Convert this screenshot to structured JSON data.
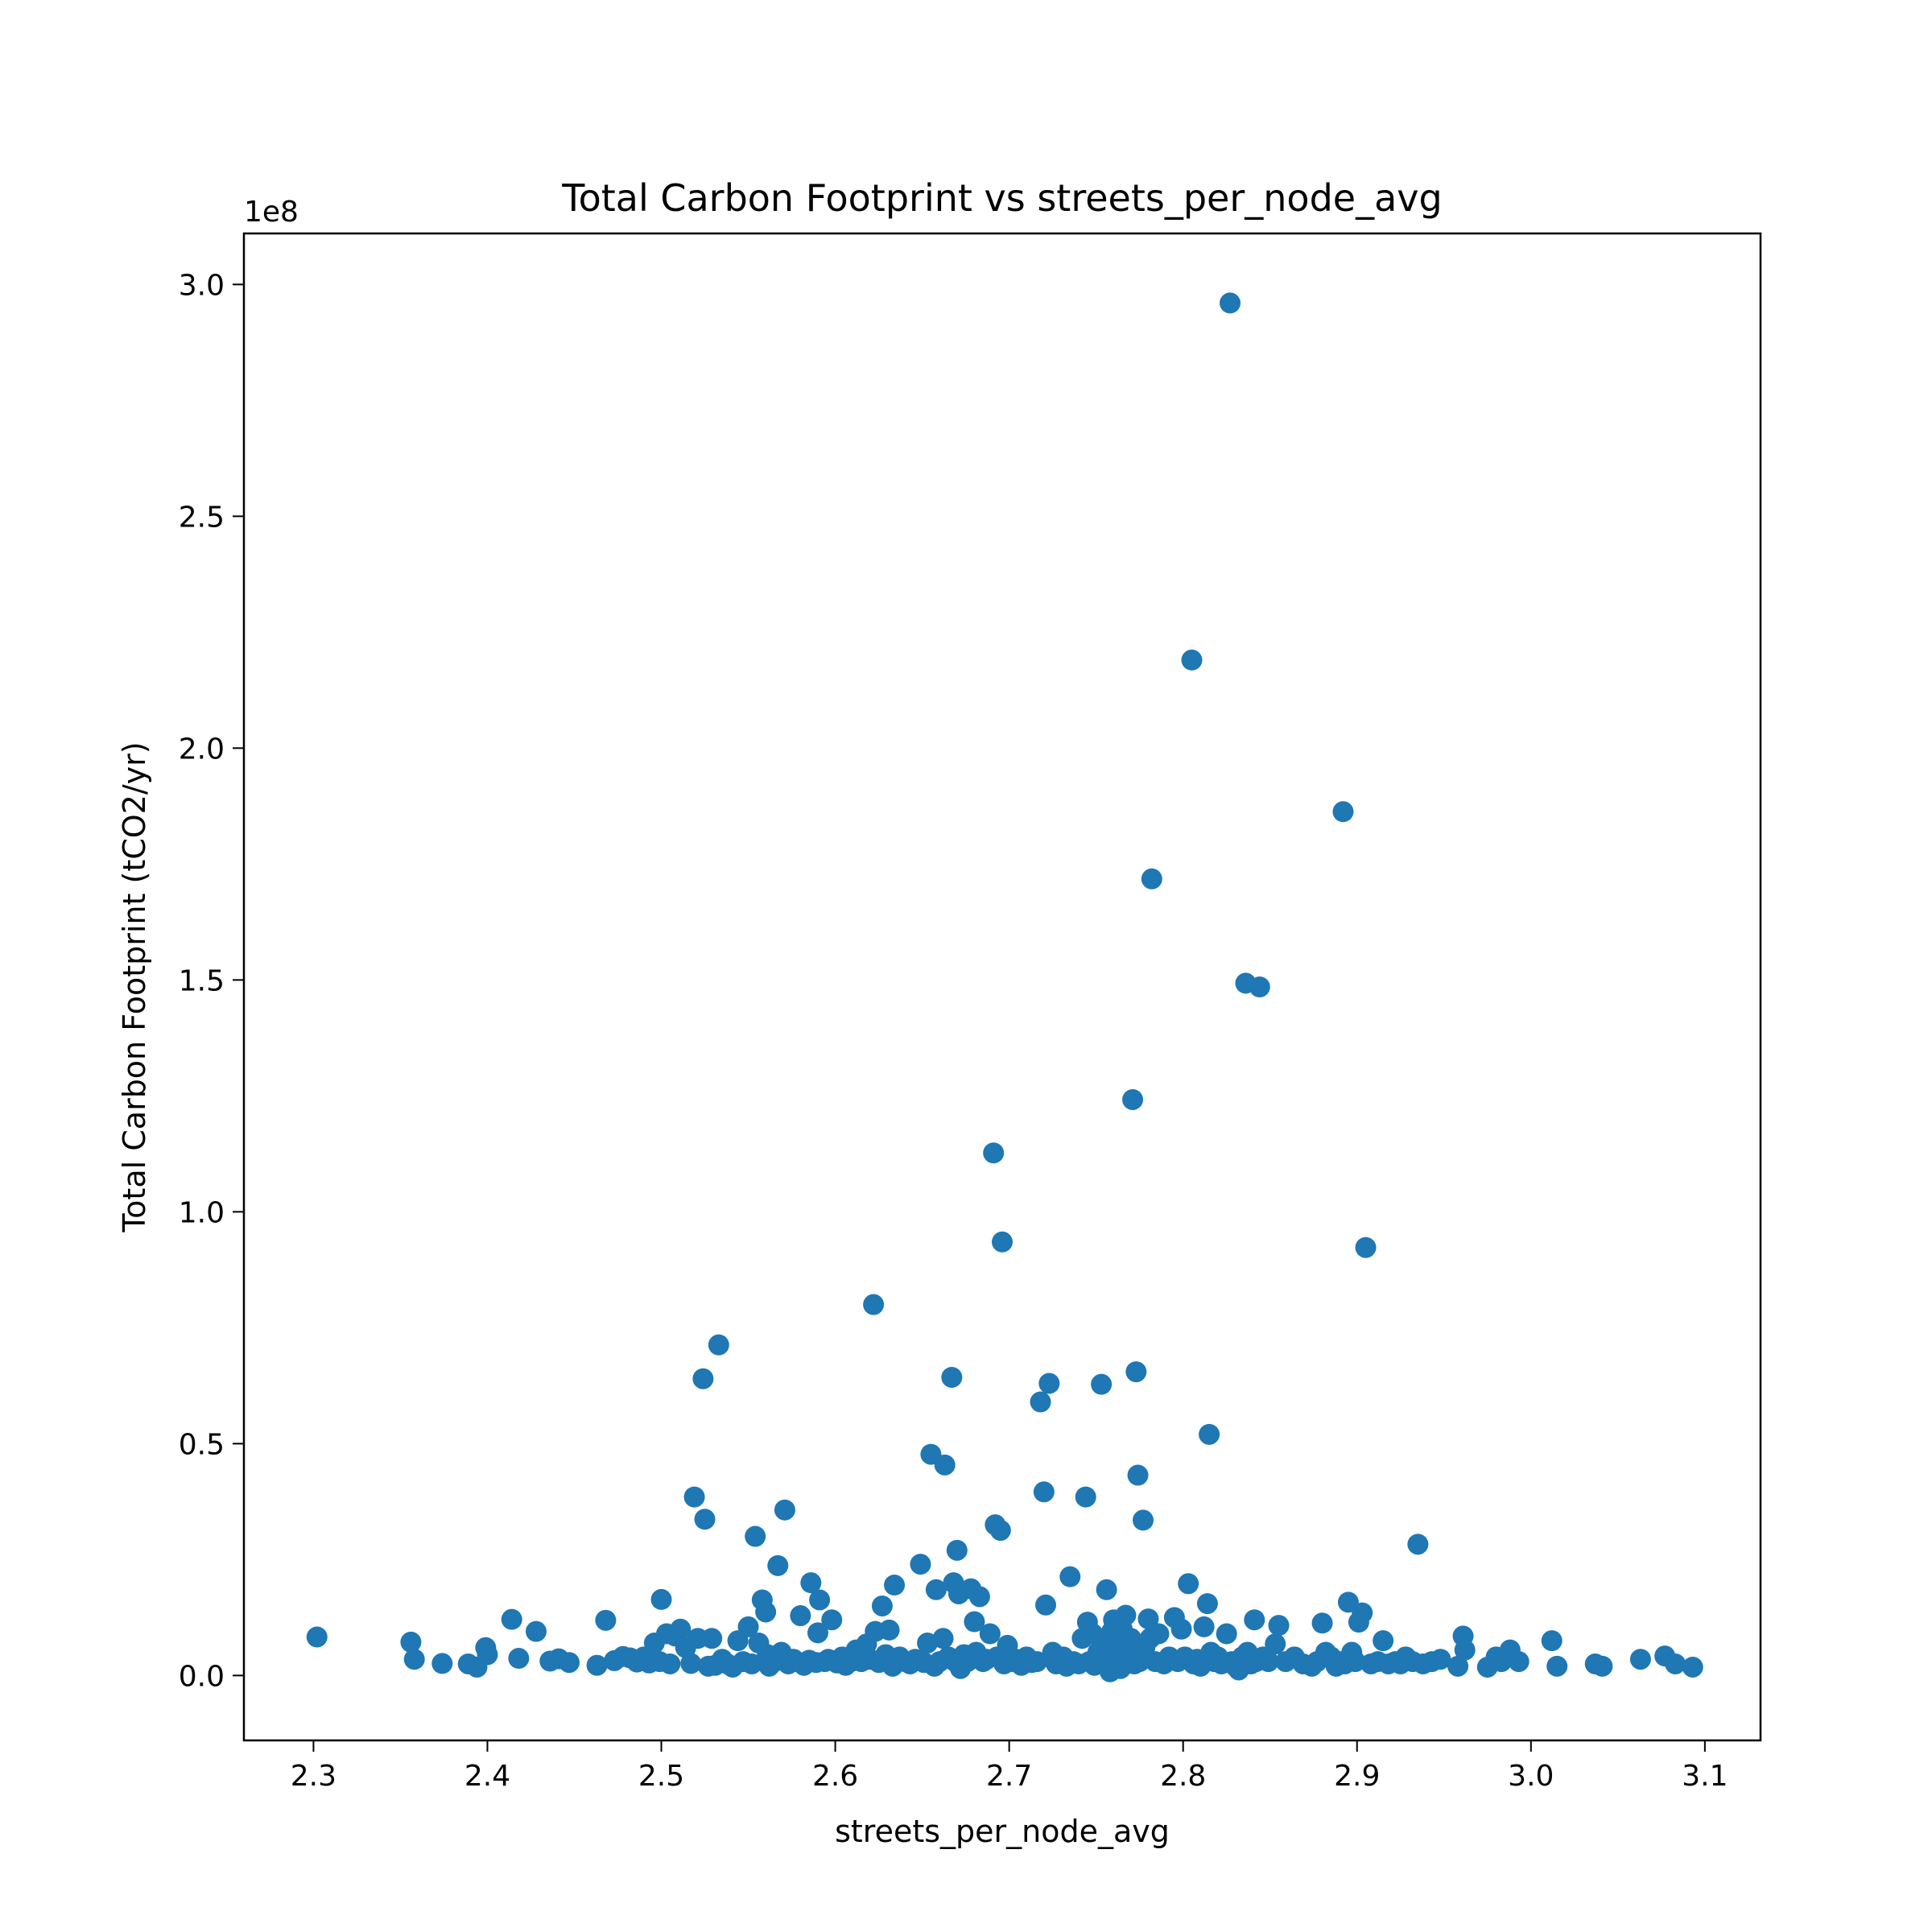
{
  "chart_data": {
    "type": "scatter",
    "title": "Total Carbon Footprint vs streets_per_node_avg",
    "xlabel": "streets_per_node_avg",
    "ylabel": "Total Carbon Footprint (tCO2/yr)",
    "y_offset_label": "1e8",
    "xlim": [
      2.26,
      3.132
    ],
    "ylim": [
      -0.14,
      3.11
    ],
    "xticks": [
      2.3,
      2.4,
      2.5,
      2.6,
      2.7,
      2.8,
      2.9,
      3.0,
      3.1
    ],
    "xtick_labels": [
      "2.3",
      "2.4",
      "2.5",
      "2.6",
      "2.7",
      "2.8",
      "2.9",
      "3.0",
      "3.1"
    ],
    "yticks": [
      0.0,
      0.5,
      1.0,
      1.5,
      2.0,
      2.5,
      3.0
    ],
    "ytick_labels": [
      "0.0",
      "0.5",
      "1.0",
      "1.5",
      "2.0",
      "2.5",
      "3.0"
    ],
    "grid": false,
    "marker_color": "#1f77b4",
    "points": [
      [
        2.302,
        0.083
      ],
      [
        2.356,
        0.072
      ],
      [
        2.358,
        0.035
      ],
      [
        2.374,
        0.026
      ],
      [
        2.389,
        0.025
      ],
      [
        2.394,
        0.018
      ],
      [
        2.399,
        0.06
      ],
      [
        2.4,
        0.045
      ],
      [
        2.414,
        0.121
      ],
      [
        2.418,
        0.037
      ],
      [
        2.428,
        0.095
      ],
      [
        2.436,
        0.031
      ],
      [
        2.441,
        0.036
      ],
      [
        2.447,
        0.028
      ],
      [
        2.463,
        0.022
      ],
      [
        2.468,
        0.119
      ],
      [
        2.473,
        0.032
      ],
      [
        2.478,
        0.041
      ],
      [
        2.482,
        0.038
      ],
      [
        2.486,
        0.029
      ],
      [
        2.49,
        0.04
      ],
      [
        2.493,
        0.027
      ],
      [
        2.496,
        0.07
      ],
      [
        2.499,
        0.03
      ],
      [
        2.5,
        0.164
      ],
      [
        2.503,
        0.09
      ],
      [
        2.505,
        0.025
      ],
      [
        2.508,
        0.085
      ],
      [
        2.511,
        0.1
      ],
      [
        2.514,
        0.06
      ],
      [
        2.517,
        0.026
      ],
      [
        2.519,
        0.385
      ],
      [
        2.521,
        0.08
      ],
      [
        2.524,
        0.64
      ],
      [
        2.525,
        0.337
      ],
      [
        2.527,
        0.02
      ],
      [
        2.529,
        0.08
      ],
      [
        2.531,
        0.022
      ],
      [
        2.533,
        0.713
      ],
      [
        2.535,
        0.035
      ],
      [
        2.538,
        0.025
      ],
      [
        2.541,
        0.018
      ],
      [
        2.544,
        0.075
      ],
      [
        2.547,
        0.03
      ],
      [
        2.55,
        0.105
      ],
      [
        2.552,
        0.025
      ],
      [
        2.554,
        0.3
      ],
      [
        2.556,
        0.07
      ],
      [
        2.558,
        0.163
      ],
      [
        2.56,
        0.137
      ],
      [
        2.561,
        0.045
      ],
      [
        2.562,
        0.02
      ],
      [
        2.565,
        0.03
      ],
      [
        2.567,
        0.237
      ],
      [
        2.569,
        0.05
      ],
      [
        2.571,
        0.357
      ],
      [
        2.573,
        0.025
      ],
      [
        2.576,
        0.035
      ],
      [
        2.578,
        0.03
      ],
      [
        2.58,
        0.129
      ],
      [
        2.582,
        0.022
      ],
      [
        2.585,
        0.033
      ],
      [
        2.586,
        0.2
      ],
      [
        2.589,
        0.028
      ],
      [
        2.59,
        0.092
      ],
      [
        2.591,
        0.163
      ],
      [
        2.594,
        0.03
      ],
      [
        2.596,
        0.035
      ],
      [
        2.598,
        0.12
      ],
      [
        2.601,
        0.027
      ],
      [
        2.604,
        0.04
      ],
      [
        2.606,
        0.022
      ],
      [
        2.609,
        0.03
      ],
      [
        2.612,
        0.055
      ],
      [
        2.615,
        0.03
      ],
      [
        2.618,
        0.068
      ],
      [
        2.62,
        0.035
      ],
      [
        2.622,
        0.8
      ],
      [
        2.623,
        0.095
      ],
      [
        2.625,
        0.028
      ],
      [
        2.627,
        0.15
      ],
      [
        2.629,
        0.045
      ],
      [
        2.631,
        0.098
      ],
      [
        2.633,
        0.02
      ],
      [
        2.634,
        0.195
      ],
      [
        2.637,
        0.04
      ],
      [
        2.64,
        0.03
      ],
      [
        2.643,
        0.025
      ],
      [
        2.646,
        0.035
      ],
      [
        2.649,
        0.24
      ],
      [
        2.651,
        0.028
      ],
      [
        2.653,
        0.07
      ],
      [
        2.655,
        0.477
      ],
      [
        2.657,
        0.02
      ],
      [
        2.658,
        0.185
      ],
      [
        2.66,
        0.03
      ],
      [
        2.662,
        0.08
      ],
      [
        2.663,
        0.454
      ],
      [
        2.665,
        0.04
      ],
      [
        2.667,
        0.643
      ],
      [
        2.668,
        0.2
      ],
      [
        2.669,
        0.03
      ],
      [
        2.67,
        0.27
      ],
      [
        2.671,
        0.176
      ],
      [
        2.672,
        0.015
      ],
      [
        2.674,
        0.045
      ],
      [
        2.676,
        0.03
      ],
      [
        2.678,
        0.187
      ],
      [
        2.68,
        0.116
      ],
      [
        2.681,
        0.05
      ],
      [
        2.683,
        0.17
      ],
      [
        2.685,
        0.03
      ],
      [
        2.687,
        0.035
      ],
      [
        2.689,
        0.09
      ],
      [
        2.691,
        1.127
      ],
      [
        2.692,
        0.325
      ],
      [
        2.693,
        0.04
      ],
      [
        2.695,
        0.313
      ],
      [
        2.696,
        0.935
      ],
      [
        2.697,
        0.025
      ],
      [
        2.699,
        0.065
      ],
      [
        2.701,
        0.03
      ],
      [
        2.704,
        0.035
      ],
      [
        2.707,
        0.022
      ],
      [
        2.71,
        0.04
      ],
      [
        2.713,
        0.028
      ],
      [
        2.716,
        0.03
      ],
      [
        2.718,
        0.59
      ],
      [
        2.72,
        0.396
      ],
      [
        2.721,
        0.152
      ],
      [
        2.723,
        0.63
      ],
      [
        2.725,
        0.05
      ],
      [
        2.727,
        0.025
      ],
      [
        2.729,
        0.03
      ],
      [
        2.731,
        0.04
      ],
      [
        2.733,
        0.02
      ],
      [
        2.735,
        0.213
      ],
      [
        2.737,
        0.03
      ],
      [
        2.74,
        0.025
      ],
      [
        2.742,
        0.08
      ],
      [
        2.744,
        0.385
      ],
      [
        2.745,
        0.115
      ],
      [
        2.746,
        0.03
      ],
      [
        2.748,
        0.09
      ],
      [
        2.749,
        0.022
      ],
      [
        2.751,
        0.05
      ],
      [
        2.753,
        0.628
      ],
      [
        2.754,
        0.07
      ],
      [
        2.755,
        0.03
      ],
      [
        2.756,
        0.185
      ],
      [
        2.757,
        0.04
      ],
      [
        2.758,
        0.008
      ],
      [
        2.759,
        0.095
      ],
      [
        2.76,
        0.12
      ],
      [
        2.761,
        0.05
      ],
      [
        2.762,
        0.025
      ],
      [
        2.763,
        0.06
      ],
      [
        2.764,
        0.015
      ],
      [
        2.765,
        0.1
      ],
      [
        2.766,
        0.035
      ],
      [
        2.767,
        0.13
      ],
      [
        2.768,
        0.07
      ],
      [
        2.769,
        0.04
      ],
      [
        2.77,
        0.08
      ],
      [
        2.771,
        1.242
      ],
      [
        2.772,
        0.025
      ],
      [
        2.773,
        0.655
      ],
      [
        2.774,
        0.432
      ],
      [
        2.775,
        0.03
      ],
      [
        2.776,
        0.035
      ],
      [
        2.777,
        0.335
      ],
      [
        2.778,
        0.06
      ],
      [
        2.78,
        0.122
      ],
      [
        2.781,
        0.08
      ],
      [
        2.782,
        1.718
      ],
      [
        2.784,
        0.03
      ],
      [
        2.786,
        0.09
      ],
      [
        2.789,
        0.025
      ],
      [
        2.792,
        0.04
      ],
      [
        2.795,
        0.125
      ],
      [
        2.797,
        0.03
      ],
      [
        2.799,
        0.1
      ],
      [
        2.801,
        0.04
      ],
      [
        2.803,
        0.198
      ],
      [
        2.805,
        2.19
      ],
      [
        2.806,
        0.025
      ],
      [
        2.808,
        0.035
      ],
      [
        2.81,
        0.02
      ],
      [
        2.812,
        0.105
      ],
      [
        2.814,
        0.155
      ],
      [
        2.815,
        0.52
      ],
      [
        2.816,
        0.05
      ],
      [
        2.818,
        0.03
      ],
      [
        2.82,
        0.04
      ],
      [
        2.822,
        0.025
      ],
      [
        2.825,
        0.09
      ],
      [
        2.827,
        2.96
      ],
      [
        2.828,
        0.03
      ],
      [
        2.83,
        0.02
      ],
      [
        2.832,
        0.012
      ],
      [
        2.834,
        0.04
      ],
      [
        2.836,
        1.493
      ],
      [
        2.837,
        0.05
      ],
      [
        2.839,
        0.025
      ],
      [
        2.841,
        0.12
      ],
      [
        2.842,
        0.03
      ],
      [
        2.844,
        1.485
      ],
      [
        2.846,
        0.04
      ],
      [
        2.849,
        0.03
      ],
      [
        2.853,
        0.068
      ],
      [
        2.855,
        0.108
      ],
      [
        2.859,
        0.03
      ],
      [
        2.864,
        0.04
      ],
      [
        2.869,
        0.025
      ],
      [
        2.874,
        0.02
      ],
      [
        2.877,
        0.03
      ],
      [
        2.88,
        0.113
      ],
      [
        2.882,
        0.05
      ],
      [
        2.885,
        0.04
      ],
      [
        2.888,
        0.02
      ],
      [
        2.89,
        0.03
      ],
      [
        2.892,
        1.863
      ],
      [
        2.893,
        0.025
      ],
      [
        2.895,
        0.158
      ],
      [
        2.897,
        0.05
      ],
      [
        2.899,
        0.03
      ],
      [
        2.901,
        0.115
      ],
      [
        2.903,
        0.135
      ],
      [
        2.905,
        0.923
      ],
      [
        2.908,
        0.025
      ],
      [
        2.912,
        0.03
      ],
      [
        2.915,
        0.075
      ],
      [
        2.918,
        0.025
      ],
      [
        2.922,
        0.03
      ],
      [
        2.925,
        0.025
      ],
      [
        2.928,
        0.04
      ],
      [
        2.932,
        0.03
      ],
      [
        2.935,
        0.283
      ],
      [
        2.938,
        0.025
      ],
      [
        2.943,
        0.03
      ],
      [
        2.948,
        0.035
      ],
      [
        2.958,
        0.02
      ],
      [
        2.961,
        0.085
      ],
      [
        2.962,
        0.055
      ],
      [
        2.975,
        0.018
      ],
      [
        2.98,
        0.04
      ],
      [
        2.983,
        0.03
      ],
      [
        2.988,
        0.055
      ],
      [
        2.993,
        0.03
      ],
      [
        3.012,
        0.075
      ],
      [
        3.015,
        0.02
      ],
      [
        3.037,
        0.025
      ],
      [
        3.041,
        0.02
      ],
      [
        3.063,
        0.035
      ],
      [
        3.077,
        0.042
      ],
      [
        3.083,
        0.025
      ],
      [
        3.093,
        0.018
      ]
    ]
  }
}
